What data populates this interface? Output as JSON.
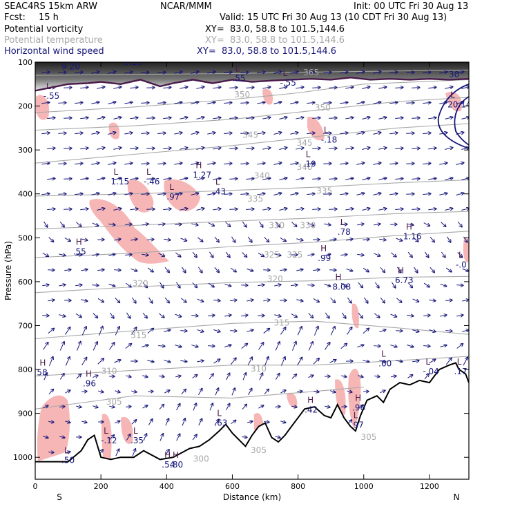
{
  "header": {
    "model": "SEAC4RS 15km ARW",
    "org": "NCAR/MMM",
    "init": "Init: 00 UTC Fri 30 Aug 13",
    "fcst_label": "Fcst:",
    "fcst_value": "15 h",
    "valid": "Valid: 15 UTC Fri 30 Aug 13 (10 CDT Fri 30 Aug 13)"
  },
  "legend": [
    {
      "field": "Potential vorticity",
      "xy": "XY=  83.0, 58.8 to 101.5,144.6",
      "color": "#000000"
    },
    {
      "field": "Potential temperature",
      "xy": "XY=  83.0, 58.8 to 101.5,144.6",
      "color": "#a8a8a8"
    },
    {
      "field": "Horizontal wind speed",
      "xy": "XY=  83.0, 58.8 to 101.5,144.6",
      "color": "#15157a"
    }
  ],
  "chart_data": {
    "type": "cross-section",
    "xlabel": "Distance (km)",
    "ylabel": "Pressure (hPa)",
    "xlim": [
      0,
      1320
    ],
    "ylim": [
      100,
      1050
    ],
    "x_ticks": [
      "0",
      "200",
      "400",
      "600",
      "800",
      "1000",
      "1200"
    ],
    "y_ticks": [
      "100",
      "200",
      "300",
      "400",
      "500",
      "600",
      "700",
      "800",
      "900",
      "1000"
    ],
    "end_labels": {
      "left": "S",
      "right": "N"
    },
    "theta_isentropes": [
      {
        "label": "365",
        "points": [
          [
            0,
            130
          ],
          [
            300,
            128
          ],
          [
            600,
            126
          ],
          [
            900,
            122
          ],
          [
            1320,
            118
          ]
        ]
      },
      {
        "label": "350",
        "points": [
          [
            0,
            215
          ],
          [
            300,
            202
          ],
          [
            600,
            185
          ],
          [
            800,
            170
          ],
          [
            1000,
            150
          ],
          [
            1320,
            140
          ]
        ]
      },
      {
        "label": "345",
        "points": [
          [
            0,
            255
          ],
          [
            300,
            245
          ],
          [
            600,
            230
          ],
          [
            850,
            210
          ],
          [
            1100,
            190
          ],
          [
            1320,
            180
          ]
        ]
      },
      {
        "label": "340",
        "points": [
          [
            0,
            330
          ],
          [
            300,
            310
          ],
          [
            600,
            290
          ],
          [
            850,
            270
          ],
          [
            1100,
            250
          ],
          [
            1320,
            240
          ]
        ]
      },
      {
        "label": "335",
        "points": [
          [
            0,
            405
          ],
          [
            300,
            400
          ],
          [
            600,
            392
          ],
          [
            850,
            385
          ],
          [
            1100,
            375
          ],
          [
            1320,
            368
          ]
        ]
      },
      {
        "label": "330",
        "points": [
          [
            0,
            480
          ],
          [
            300,
            472
          ],
          [
            600,
            462
          ],
          [
            850,
            455
          ],
          [
            1100,
            445
          ],
          [
            1320,
            440
          ]
        ]
      },
      {
        "label": "325",
        "points": [
          [
            0,
            545
          ],
          [
            300,
            535
          ],
          [
            600,
            520
          ],
          [
            850,
            510
          ],
          [
            1100,
            495
          ],
          [
            1320,
            485
          ]
        ]
      },
      {
        "label": "320",
        "points": [
          [
            0,
            625
          ],
          [
            300,
            612
          ],
          [
            600,
            602
          ],
          [
            850,
            598
          ],
          [
            1100,
            590
          ],
          [
            1320,
            588
          ]
        ]
      },
      {
        "label": "315",
        "points": [
          [
            0,
            730
          ],
          [
            300,
            712
          ],
          [
            600,
            695
          ],
          [
            850,
            690
          ],
          [
            1100,
            705
          ],
          [
            1320,
            720
          ]
        ]
      },
      {
        "label": "310",
        "points": [
          [
            0,
            815
          ],
          [
            300,
            802
          ],
          [
            600,
            790
          ],
          [
            850,
            790
          ],
          [
            1100,
            780
          ],
          [
            1320,
            770
          ]
        ]
      },
      {
        "label": "305",
        "points": [
          [
            0,
            890
          ],
          [
            300,
            860
          ],
          [
            600,
            865
          ],
          [
            850,
            850
          ],
          [
            1000,
            840
          ]
        ]
      }
    ],
    "theta_labels": [
      {
        "text": "365",
        "x": 840,
        "y": 130
      },
      {
        "text": "350",
        "x": 630,
        "y": 180
      },
      {
        "text": "350",
        "x": 875,
        "y": 210
      },
      {
        "text": "345",
        "x": 655,
        "y": 272
      },
      {
        "text": "345",
        "x": 820,
        "y": 290
      },
      {
        "text": "340",
        "x": 690,
        "y": 365
      },
      {
        "text": "340",
        "x": 820,
        "y": 345
      },
      {
        "text": "335",
        "x": 670,
        "y": 418
      },
      {
        "text": "335",
        "x": 880,
        "y": 400
      },
      {
        "text": "330",
        "x": 735,
        "y": 478
      },
      {
        "text": "330",
        "x": 830,
        "y": 478
      },
      {
        "text": "325",
        "x": 720,
        "y": 545
      },
      {
        "text": "325",
        "x": 790,
        "y": 545
      },
      {
        "text": "320",
        "x": 320,
        "y": 610
      },
      {
        "text": "320",
        "x": 730,
        "y": 600
      },
      {
        "text": "315",
        "x": 315,
        "y": 728
      },
      {
        "text": "315",
        "x": 750,
        "y": 700
      },
      {
        "text": "310",
        "x": 225,
        "y": 810
      },
      {
        "text": "310",
        "x": 680,
        "y": 805
      },
      {
        "text": "305",
        "x": 240,
        "y": 880
      },
      {
        "text": "305",
        "x": 1015,
        "y": 960
      },
      {
        "text": "305",
        "x": 680,
        "y": 990
      },
      {
        "text": "300",
        "x": 505,
        "y": 1010
      }
    ],
    "pv_extrema": [
      {
        "type": "L",
        "value": "-.55",
        "x": 25,
        "y": 180
      },
      {
        "type": "L",
        "value": ".55",
        "x": 600,
        "y": 140
      },
      {
        "type": "L",
        "value": "-.55",
        "x": 745,
        "y": 150
      },
      {
        "type": "L",
        "value": "-.18",
        "x": 870,
        "y": 280
      },
      {
        "type": "L",
        "value": ".19",
        "x": 815,
        "y": 335
      },
      {
        "type": "L",
        "value": "1.15",
        "x": 230,
        "y": 375
      },
      {
        "type": "L",
        "value": "-.46",
        "x": 330,
        "y": 375
      },
      {
        "type": "H",
        "value": "1.27",
        "x": 480,
        "y": 360
      },
      {
        "type": "L",
        "value": ".97",
        "x": 400,
        "y": 410
      },
      {
        "type": "L",
        "value": ".43",
        "x": 540,
        "y": 398
      },
      {
        "type": "L",
        "value": ".78",
        "x": 920,
        "y": 490
      },
      {
        "type": "H",
        "value": ".55",
        "x": 115,
        "y": 535
      },
      {
        "type": "H",
        "value": ".99",
        "x": 860,
        "y": 550
      },
      {
        "type": "H",
        "value": "1.16",
        "x": 1120,
        "y": 500
      },
      {
        "type": "L",
        "value": "-.0",
        "x": 1280,
        "y": 565
      },
      {
        "type": "H",
        "value": "8.08",
        "x": 905,
        "y": 615
      },
      {
        "type": "H",
        "value": "6.73",
        "x": 1095,
        "y": 600
      },
      {
        "type": "L",
        "value": ".60",
        "x": 1045,
        "y": 790
      },
      {
        "type": "L",
        "value": "-.04",
        "x": 1180,
        "y": 808
      },
      {
        "type": "L",
        "value": ".17",
        "x": 1275,
        "y": 808
      },
      {
        "type": "H",
        "value": "58",
        "x": 5,
        "y": 810
      },
      {
        "type": "H",
        "value": ".96",
        "x": 145,
        "y": 835
      },
      {
        "type": "H",
        "value": ".42",
        "x": 820,
        "y": 895
      },
      {
        "type": "H",
        "value": ".90",
        "x": 965,
        "y": 890
      },
      {
        "type": "L",
        "value": ".97",
        "x": 960,
        "y": 930
      },
      {
        "type": "L",
        "value": ".63",
        "x": 545,
        "y": 925
      },
      {
        "type": "L",
        "value": "-.12",
        "x": 200,
        "y": 965
      },
      {
        "type": "L",
        "value": ".35",
        "x": 290,
        "y": 965
      },
      {
        "type": "L",
        "value": ".50",
        "x": 80,
        "y": 1010
      },
      {
        "type": "H",
        "value": ".54",
        "x": 385,
        "y": 1020
      },
      {
        "type": "H",
        "value": ".80",
        "x": 410,
        "y": 1020
      },
      {
        "type": "L",
        "value": "9.20",
        "x": 80,
        "y": 113
      },
      {
        "type": "L",
        "value": "9.29",
        "x": 270,
        "y": 103
      },
      {
        "type": "L",
        "value": "20.14",
        "x": 1255,
        "y": 200
      }
    ],
    "terrain_pressure": [
      [
        0,
        1010
      ],
      [
        100,
        1010
      ],
      [
        140,
        985
      ],
      [
        160,
        960
      ],
      [
        180,
        950
      ],
      [
        200,
        1000
      ],
      [
        230,
        1005
      ],
      [
        260,
        1000
      ],
      [
        300,
        1000
      ],
      [
        330,
        985
      ],
      [
        380,
        1005
      ],
      [
        420,
        1000
      ],
      [
        470,
        980
      ],
      [
        500,
        975
      ],
      [
        530,
        960
      ],
      [
        560,
        940
      ],
      [
        580,
        925
      ],
      [
        600,
        945
      ],
      [
        620,
        960
      ],
      [
        640,
        975
      ],
      [
        660,
        950
      ],
      [
        680,
        930
      ],
      [
        700,
        922
      ],
      [
        720,
        955
      ],
      [
        740,
        965
      ],
      [
        760,
        950
      ],
      [
        790,
        920
      ],
      [
        820,
        890
      ],
      [
        850,
        885
      ],
      [
        880,
        905
      ],
      [
        900,
        910
      ],
      [
        920,
        880
      ],
      [
        940,
        910
      ],
      [
        960,
        930
      ],
      [
        975,
        940
      ],
      [
        990,
        905
      ],
      [
        1010,
        870
      ],
      [
        1040,
        860
      ],
      [
        1060,
        875
      ],
      [
        1080,
        845
      ],
      [
        1110,
        830
      ],
      [
        1140,
        835
      ],
      [
        1170,
        825
      ],
      [
        1200,
        830
      ],
      [
        1230,
        800
      ],
      [
        1260,
        790
      ],
      [
        1280,
        785
      ],
      [
        1290,
        800
      ],
      [
        1310,
        810
      ],
      [
        1320,
        830
      ]
    ],
    "pv_2pvu_line": [
      [
        0,
        165
      ],
      [
        100,
        150
      ],
      [
        160,
        148
      ],
      [
        200,
        145
      ],
      [
        260,
        150
      ],
      [
        320,
        140
      ],
      [
        380,
        155
      ],
      [
        420,
        148
      ],
      [
        480,
        140
      ],
      [
        540,
        148
      ],
      [
        600,
        140
      ],
      [
        660,
        145
      ],
      [
        720,
        142
      ],
      [
        780,
        140
      ],
      [
        840,
        138
      ],
      [
        900,
        140
      ],
      [
        960,
        135
      ],
      [
        1020,
        140
      ],
      [
        1080,
        138
      ],
      [
        1140,
        140
      ],
      [
        1200,
        138
      ],
      [
        1260,
        140
      ],
      [
        1320,
        138
      ]
    ],
    "wind_speed_contour_label": "30"
  }
}
